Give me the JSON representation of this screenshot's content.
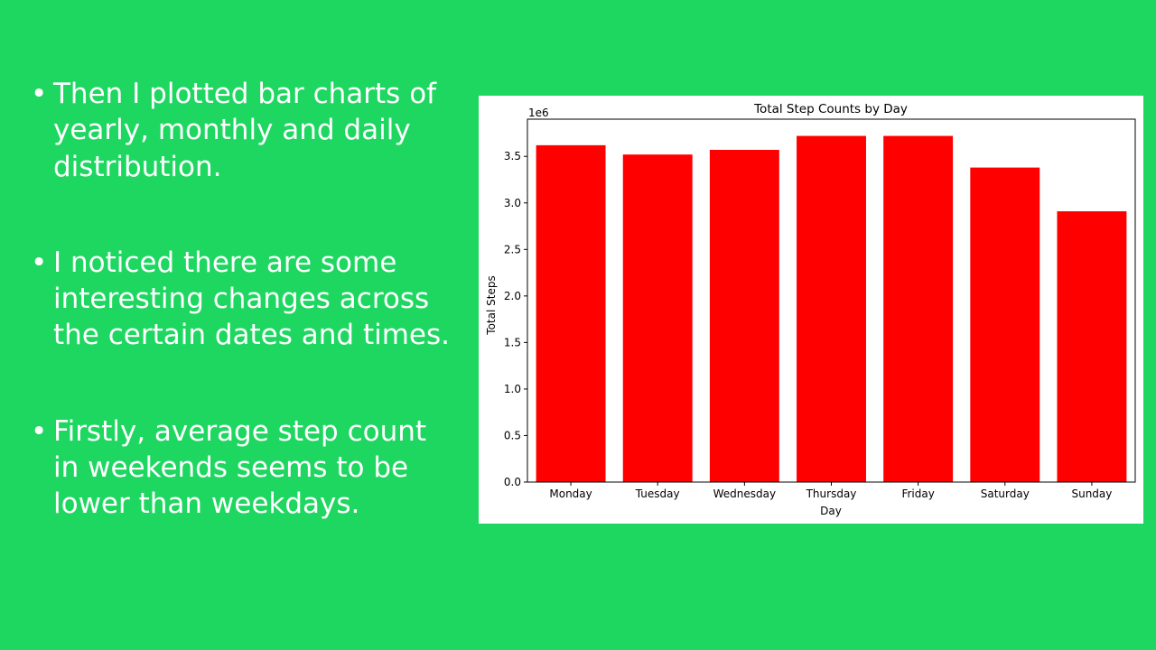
{
  "slide": {
    "background": "#1ed760"
  },
  "bullets": [
    "Then I plotted bar charts of yearly, monthly and daily distribution.",
    "I noticed there are some interesting changes across the certain dates and times.",
    "Firstly, average step count in weekends seems to be lower than weekdays."
  ],
  "bullet_glyph": "•",
  "chart_data": {
    "type": "bar",
    "title": "Total Step Counts by Day",
    "xlabel": "Day",
    "ylabel": "Total Steps",
    "y_offset_label": "1e6",
    "categories": [
      "Monday",
      "Tuesday",
      "Wednesday",
      "Thursday",
      "Friday",
      "Saturday",
      "Sunday"
    ],
    "values": [
      3620000,
      3520000,
      3570000,
      3720000,
      3720000,
      3380000,
      2910000
    ],
    "ylim": [
      0,
      3900000
    ],
    "yticks": [
      0,
      0.5,
      1.0,
      1.5,
      2.0,
      2.5,
      3.0,
      3.5
    ],
    "ytick_labels": [
      "0.0",
      "0.5",
      "1.0",
      "1.5",
      "2.0",
      "2.5",
      "3.0",
      "3.5"
    ],
    "y_scale": 1000000,
    "bar_color": "#ff0000",
    "grid": false,
    "legend": "none"
  }
}
